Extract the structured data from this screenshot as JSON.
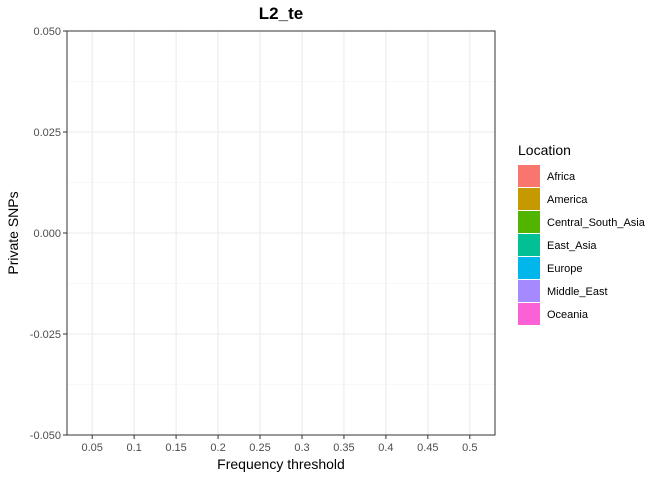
{
  "chart_data": {
    "type": "bar",
    "title": "L2_te",
    "xlabel": "Frequency threshold",
    "ylabel": "Private SNPs",
    "categories": [
      "0.05",
      "0.1",
      "0.15",
      "0.2",
      "0.25",
      "0.3",
      "0.35",
      "0.4",
      "0.45",
      "0.5"
    ],
    "y_ticks": [
      "0.050",
      "0.025",
      "0.000",
      "-0.025",
      "-0.050"
    ],
    "ylim": [
      -0.05,
      0.05
    ],
    "grid": true,
    "legend_position": "right",
    "legend": {
      "title": "Location",
      "entries": [
        {
          "label": "Africa",
          "color": "#F8766D"
        },
        {
          "label": "America",
          "color": "#C49A00"
        },
        {
          "label": "Central_South_Asia",
          "color": "#53B400"
        },
        {
          "label": "East_Asia",
          "color": "#00C094"
        },
        {
          "label": "Europe",
          "color": "#00B6EB"
        },
        {
          "label": "Middle_East",
          "color": "#A58AFF"
        },
        {
          "label": "Oceania",
          "color": "#FB61D7"
        }
      ]
    },
    "series": []
  }
}
